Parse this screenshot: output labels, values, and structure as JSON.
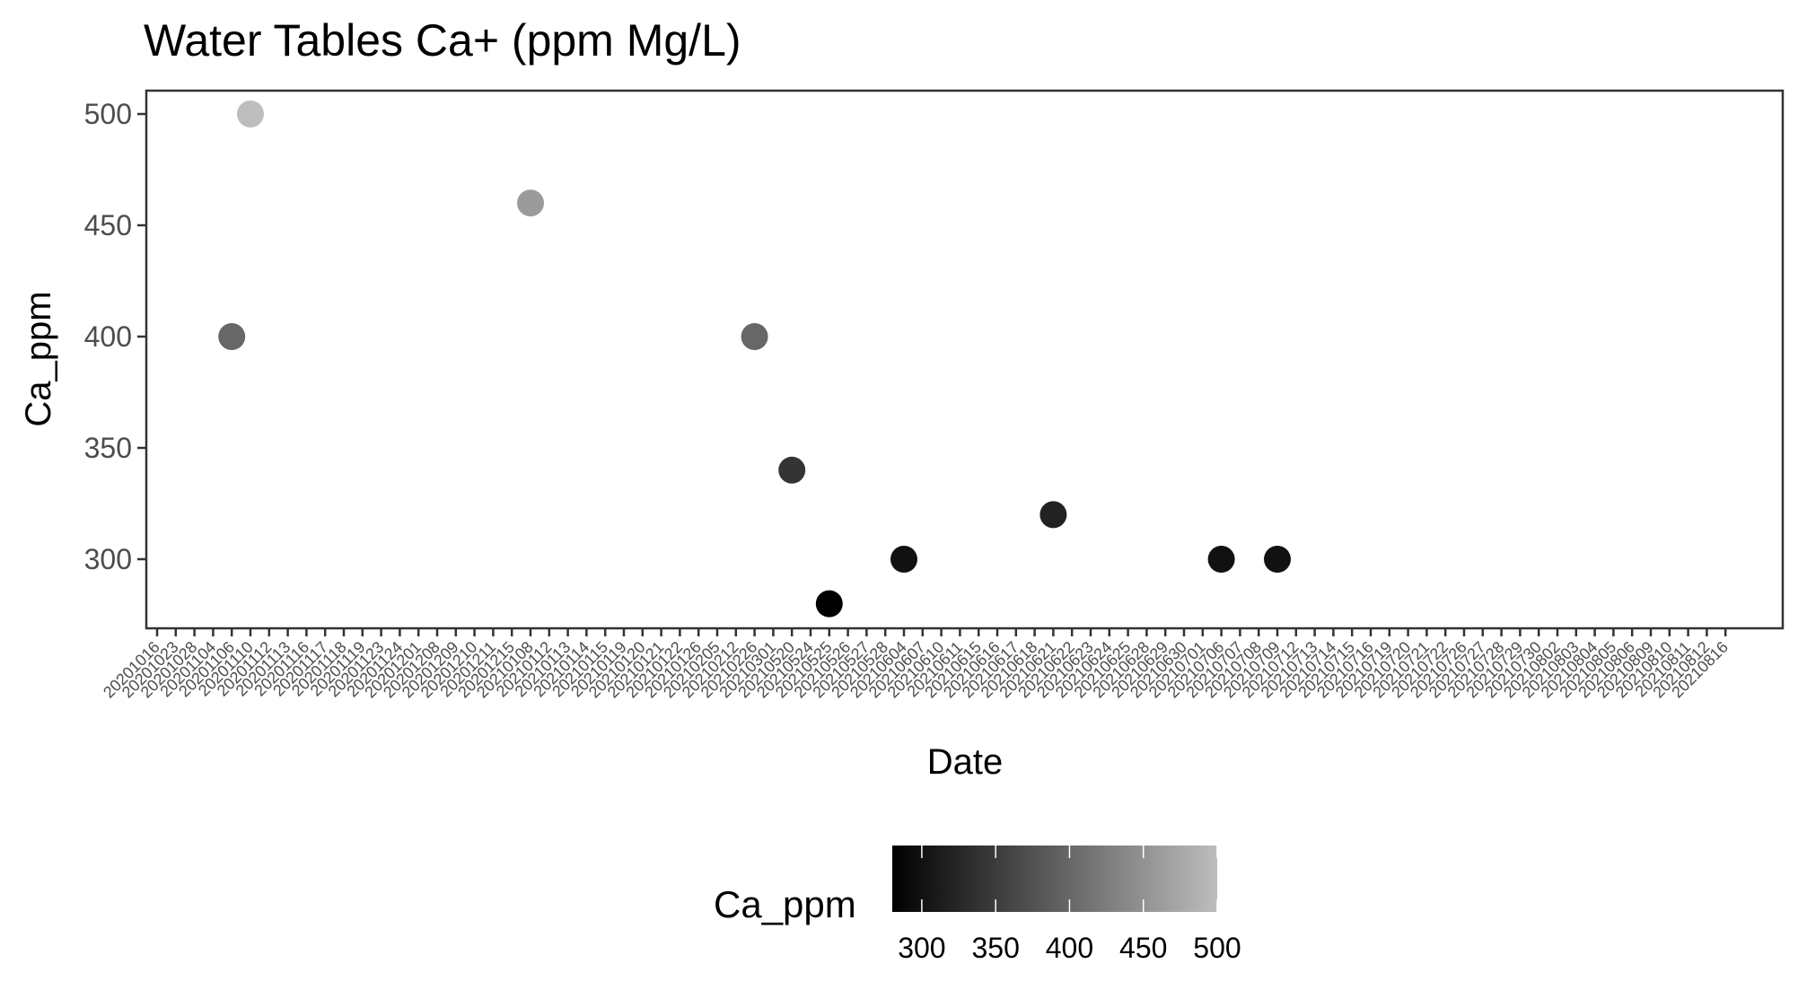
{
  "chart_data": {
    "type": "scatter",
    "title": "Water Tables Ca+ (ppm Mg/L)",
    "xlabel": "Date",
    "ylabel": "Ca_ppm",
    "x_type": "categorical",
    "x_categories": [
      "20201016",
      "20201023",
      "20201028",
      "20201104",
      "20201106",
      "20201110",
      "20201112",
      "20201113",
      "20201116",
      "20201117",
      "20201118",
      "20201119",
      "20201123",
      "20201124",
      "20201201",
      "20201208",
      "20201209",
      "20201210",
      "20201211",
      "20201215",
      "20210108",
      "20210112",
      "20210113",
      "20210114",
      "20210115",
      "20210119",
      "20210120",
      "20210121",
      "20210122",
      "20210126",
      "20210205",
      "20210212",
      "20210226",
      "20210301",
      "20210520",
      "20210524",
      "20210525",
      "20210526",
      "20210527",
      "20210528",
      "20210604",
      "20210607",
      "20210610",
      "20210611",
      "20210615",
      "20210616",
      "20210617",
      "20210618",
      "20210621",
      "20210622",
      "20210623",
      "20210624",
      "20210625",
      "20210628",
      "20210629",
      "20210630",
      "20210701",
      "20210706",
      "20210707",
      "20210708",
      "20210709",
      "20210712",
      "20210713",
      "20210714",
      "20210715",
      "20210716",
      "20210719",
      "20210720",
      "20210721",
      "20210722",
      "20210726",
      "20210727",
      "20210728",
      "20210729",
      "20210730",
      "20210802",
      "20210803",
      "20210804",
      "20210805",
      "20210806",
      "20210809",
      "20210810",
      "20210811",
      "20210812",
      "20210816"
    ],
    "points": [
      {
        "x": "20201106",
        "y": 400
      },
      {
        "x": "20201110",
        "y": 500
      },
      {
        "x": "20210108",
        "y": 460
      },
      {
        "x": "20210226",
        "y": 400
      },
      {
        "x": "20210520",
        "y": 340
      },
      {
        "x": "20210525",
        "y": 280
      },
      {
        "x": "20210604",
        "y": 300
      },
      {
        "x": "20210621",
        "y": 320
      },
      {
        "x": "20210706",
        "y": 300
      },
      {
        "x": "20210709",
        "y": 300
      }
    ],
    "y_ticks": [
      300,
      350,
      400,
      450,
      500
    ],
    "ylim": [
      270,
      510
    ],
    "color_scale": {
      "low_value": 280,
      "high_value": 500,
      "low_color": "#000000",
      "high_color": "#bdbdbd"
    },
    "legend": {
      "title": "Ca_ppm",
      "position": "bottom",
      "ticks": [
        300,
        350,
        400,
        450,
        500
      ]
    },
    "grid": false
  }
}
